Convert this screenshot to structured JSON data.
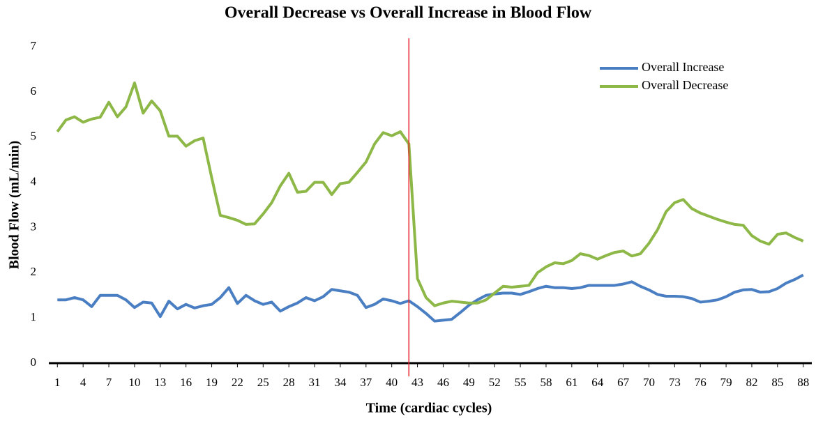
{
  "chart_data": {
    "type": "line",
    "title": "Overall Decrease vs Overall Increase in Blood Flow",
    "x_label": "Time (cardiac cycles)",
    "y_label": "Blood Flow (mL/min)",
    "x": [
      1,
      2,
      3,
      4,
      5,
      6,
      7,
      8,
      9,
      10,
      11,
      12,
      13,
      14,
      15,
      16,
      17,
      18,
      19,
      20,
      21,
      22,
      23,
      24,
      25,
      26,
      27,
      28,
      29,
      30,
      31,
      32,
      33,
      34,
      35,
      36,
      37,
      38,
      39,
      40,
      41,
      42,
      43,
      44,
      45,
      46,
      47,
      48,
      49,
      50,
      51,
      52,
      53,
      54,
      55,
      56,
      57,
      58,
      59,
      60,
      61,
      62,
      63,
      64,
      65,
      66,
      67,
      68,
      69,
      70,
      71,
      72,
      73,
      74,
      75,
      76,
      77,
      78,
      79,
      80,
      81,
      82,
      83,
      84,
      85,
      86,
      87,
      88
    ],
    "series": [
      {
        "name": "Overall Increase",
        "color": "#4a7ec2",
        "values": [
          1.4,
          1.4,
          1.45,
          1.4,
          1.25,
          1.5,
          1.5,
          1.5,
          1.4,
          1.23,
          1.35,
          1.33,
          1.03,
          1.37,
          1.2,
          1.3,
          1.22,
          1.27,
          1.3,
          1.45,
          1.67,
          1.32,
          1.5,
          1.38,
          1.3,
          1.35,
          1.15,
          1.25,
          1.33,
          1.45,
          1.38,
          1.47,
          1.63,
          1.6,
          1.57,
          1.5,
          1.23,
          1.3,
          1.42,
          1.38,
          1.32,
          1.38,
          1.25,
          1.1,
          0.93,
          0.95,
          0.97,
          1.12,
          1.28,
          1.4,
          1.5,
          1.53,
          1.55,
          1.55,
          1.52,
          1.58,
          1.65,
          1.7,
          1.67,
          1.67,
          1.65,
          1.67,
          1.72,
          1.72,
          1.72,
          1.72,
          1.75,
          1.8,
          1.7,
          1.62,
          1.52,
          1.48,
          1.48,
          1.47,
          1.43,
          1.35,
          1.37,
          1.4,
          1.47,
          1.57,
          1.62,
          1.63,
          1.57,
          1.58,
          1.65,
          1.77,
          1.85,
          1.95
        ]
      },
      {
        "name": "Overall Decrease",
        "color": "#8db847",
        "values": [
          5.12,
          5.38,
          5.45,
          5.33,
          5.4,
          5.44,
          5.77,
          5.45,
          5.67,
          6.2,
          5.53,
          5.8,
          5.58,
          5.02,
          5.02,
          4.8,
          4.92,
          4.98,
          4.1,
          3.27,
          3.22,
          3.16,
          3.07,
          3.08,
          3.3,
          3.55,
          3.92,
          4.2,
          3.78,
          3.8,
          4.0,
          4.0,
          3.73,
          3.97,
          4.0,
          4.22,
          4.45,
          4.85,
          5.1,
          5.03,
          5.12,
          4.85,
          1.87,
          1.45,
          1.27,
          1.33,
          1.37,
          1.35,
          1.33,
          1.33,
          1.4,
          1.55,
          1.7,
          1.68,
          1.7,
          1.72,
          2.0,
          2.13,
          2.22,
          2.2,
          2.27,
          2.42,
          2.38,
          2.3,
          2.38,
          2.45,
          2.48,
          2.37,
          2.42,
          2.65,
          2.95,
          3.35,
          3.55,
          3.62,
          3.42,
          3.32,
          3.25,
          3.18,
          3.12,
          3.07,
          3.05,
          2.82,
          2.7,
          2.63,
          2.85,
          2.88,
          2.78,
          2.7
        ]
      }
    ],
    "xlim": [
      0,
      89
    ],
    "xticks": [
      1,
      4,
      7,
      10,
      13,
      16,
      19,
      22,
      25,
      28,
      31,
      34,
      37,
      40,
      43,
      46,
      49,
      52,
      55,
      58,
      61,
      64,
      67,
      70,
      73,
      76,
      79,
      82,
      85,
      88
    ],
    "ylim": [
      0,
      7
    ],
    "yticks": [
      0,
      1,
      2,
      3,
      4,
      5,
      6,
      7
    ],
    "grid": false,
    "legend": "upper right",
    "vline": {
      "x": 42,
      "color": "#e8262b"
    }
  }
}
